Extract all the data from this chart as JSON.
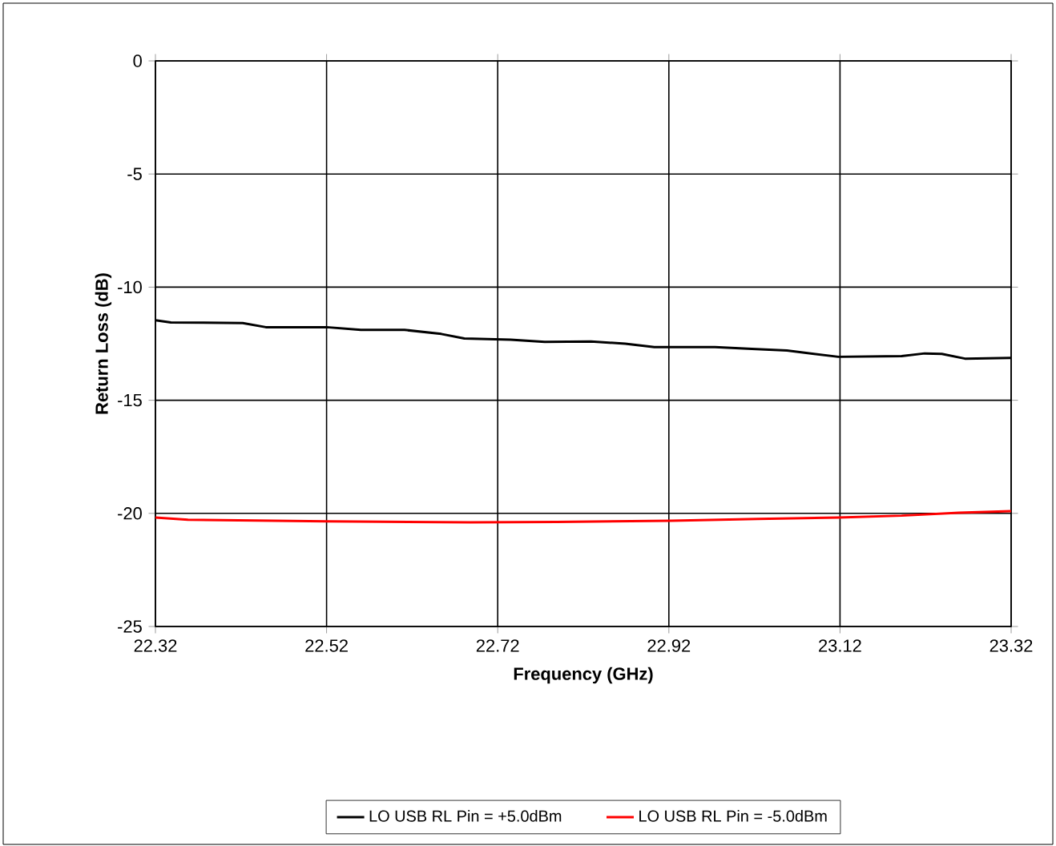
{
  "chart_data": {
    "type": "line",
    "xlabel": "Frequency (GHz)",
    "ylabel": "Return Loss (dB)",
    "xlim": [
      22.32,
      23.32
    ],
    "xticks": [
      22.32,
      22.52,
      22.72,
      22.92,
      23.12,
      23.32
    ],
    "ylim": [
      -25,
      0
    ],
    "yticks": [
      -25,
      -20,
      -15,
      -10,
      -5,
      0
    ],
    "grid": true,
    "legend": "bottom",
    "marker": "none",
    "line_style": "solid",
    "series": [
      {
        "name": "LO USB RL Pin = +5.0dBm",
        "color": "#000000",
        "x": [
          22.32,
          22.338,
          22.422,
          22.449,
          22.52,
          22.56,
          22.611,
          22.654,
          22.681,
          22.735,
          22.775,
          22.829,
          22.869,
          22.903,
          22.974,
          23.017,
          23.058,
          23.118,
          23.192,
          23.219,
          23.239,
          23.266,
          23.32
        ],
        "values": [
          -11.46,
          -11.56,
          -11.59,
          -11.77,
          -11.77,
          -11.89,
          -11.89,
          -12.07,
          -12.27,
          -12.32,
          -12.42,
          -12.4,
          -12.5,
          -12.65,
          -12.65,
          -12.73,
          -12.8,
          -13.08,
          -13.05,
          -12.93,
          -12.95,
          -13.16,
          -13.13
        ]
      },
      {
        "name": "LO USB RL Pin = -5.0dBm",
        "color": "#ff0000",
        "x": [
          22.32,
          22.358,
          22.52,
          22.688,
          22.789,
          22.923,
          23.024,
          23.118,
          23.192,
          23.259,
          23.32
        ],
        "values": [
          -20.18,
          -20.28,
          -20.35,
          -20.4,
          -20.38,
          -20.33,
          -20.25,
          -20.18,
          -20.1,
          -19.97,
          -19.9
        ]
      }
    ]
  }
}
